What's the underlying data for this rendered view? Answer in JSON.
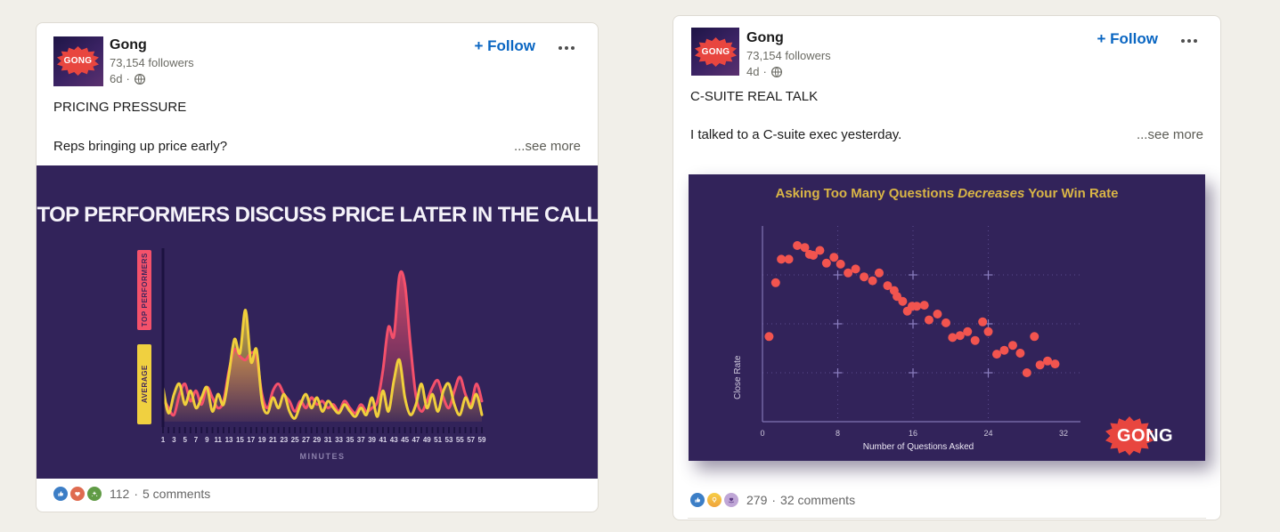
{
  "page": {
    "background": "#f1efe9"
  },
  "posts": [
    {
      "author": "Gong",
      "avatar_text": "GONG",
      "followers": "73,154 followers",
      "time": "6d",
      "separator": "·",
      "visibility_icon": "globe-icon",
      "follow_label": "+ Follow",
      "headline": "PRICING PRESSURE",
      "body": "Reps bringing up price early?",
      "see_more": "...see more",
      "social": {
        "reaction_icons": [
          "like-icon",
          "love-icon",
          "celebrate-icon"
        ],
        "reaction_count": "112",
        "separator": "·",
        "comments": "5 comments"
      }
    },
    {
      "author": "Gong",
      "avatar_text": "GONG",
      "followers": "73,154 followers",
      "time": "4d",
      "separator": "·",
      "visibility_icon": "globe-icon",
      "follow_label": "+ Follow",
      "headline": "C-SUITE REAL TALK",
      "body": "I talked to a C-suite exec yesterday.",
      "see_more": "...see more",
      "social": {
        "reaction_icons": [
          "like-icon",
          "insightful-icon",
          "support-icon"
        ],
        "reaction_count": "279",
        "separator": "·",
        "comments": "32 comments"
      }
    }
  ],
  "chart_data": [
    {
      "type": "area",
      "title": "TOP PERFORMERS DISCUSS PRICE LATER IN THE CALL",
      "xlabel": "MINUTES",
      "x_range": [
        1,
        59
      ],
      "ylim": [
        0,
        100
      ],
      "background": "#32235a",
      "axis_color": "#1c1240",
      "tick_label_color": "#d9d4e8",
      "x_tick_labels": [
        "1",
        "3",
        "5",
        "7",
        "9",
        "11",
        "13",
        "15",
        "17",
        "19",
        "21",
        "23",
        "25",
        "27",
        "29",
        "31",
        "33",
        "35",
        "37",
        "39",
        "41",
        "43",
        "45",
        "47",
        "49",
        "51",
        "53",
        "55",
        "57",
        "59"
      ],
      "series": [
        {
          "name": "TOP PERFORMERS",
          "color": "#f4506b",
          "values": [
            14,
            8,
            4,
            16,
            22,
            12,
            18,
            10,
            20,
            14,
            8,
            12,
            30,
            42,
            38,
            36,
            40,
            38,
            16,
            8,
            18,
            22,
            16,
            12,
            6,
            12,
            8,
            14,
            10,
            12,
            8,
            10,
            6,
            12,
            8,
            5,
            10,
            6,
            8,
            12,
            30,
            55,
            50,
            85,
            80,
            45,
            15,
            6,
            12,
            20,
            24,
            14,
            8,
            18,
            26,
            16,
            10,
            22,
            12
          ]
        },
        {
          "name": "AVERAGE",
          "color": "#f0cf3c",
          "values": [
            20,
            5,
            16,
            22,
            10,
            18,
            8,
            14,
            20,
            6,
            16,
            10,
            28,
            48,
            40,
            65,
            35,
            42,
            12,
            5,
            14,
            8,
            16,
            6,
            2,
            10,
            16,
            8,
            14,
            6,
            12,
            8,
            5,
            10,
            6,
            3,
            8,
            4,
            14,
            3,
            18,
            6,
            24,
            36,
            14,
            4,
            10,
            22,
            8,
            16,
            6,
            18,
            22,
            10,
            4,
            14,
            8,
            16,
            4
          ]
        }
      ]
    },
    {
      "type": "scatter",
      "title_pre": "Asking Too Many Questions ",
      "title_em": "Decreases",
      "title_post": " Your Win Rate",
      "title_color": "#d9b546",
      "xlabel": "Number of Questions Asked",
      "ylabel": "Close Rate",
      "x_ticks": [
        0,
        8,
        16,
        24,
        32
      ],
      "xlim": [
        0,
        33
      ],
      "ylim": [
        0,
        100
      ],
      "grid_y_values": [
        25,
        50,
        75
      ],
      "background": "#32235a",
      "point_color": "#f2544f",
      "grid_color": "#5b4b8e",
      "axis_color": "#8175b5",
      "watermark": "GONG",
      "points": [
        [
          0.7,
          43.5
        ],
        [
          1.4,
          71
        ],
        [
          2.0,
          83
        ],
        [
          2.8,
          83
        ],
        [
          3.7,
          90
        ],
        [
          4.5,
          89
        ],
        [
          5.0,
          85.5
        ],
        [
          5.4,
          85
        ],
        [
          6.1,
          87.5
        ],
        [
          6.8,
          81
        ],
        [
          7.6,
          84
        ],
        [
          8.3,
          80.5
        ],
        [
          9.1,
          76
        ],
        [
          9.9,
          78
        ],
        [
          10.8,
          74
        ],
        [
          11.7,
          72
        ],
        [
          12.4,
          76
        ],
        [
          13.3,
          69.5
        ],
        [
          14.0,
          67
        ],
        [
          14.3,
          64
        ],
        [
          14.9,
          61.5
        ],
        [
          15.4,
          56.5
        ],
        [
          15.9,
          59
        ],
        [
          16.4,
          59
        ],
        [
          17.2,
          59.5
        ],
        [
          17.7,
          52
        ],
        [
          18.6,
          55
        ],
        [
          19.5,
          50.5
        ],
        [
          20.2,
          43
        ],
        [
          21.0,
          44
        ],
        [
          21.8,
          46
        ],
        [
          22.6,
          41.5
        ],
        [
          23.4,
          51
        ],
        [
          24.0,
          46
        ],
        [
          24.9,
          34.5
        ],
        [
          25.7,
          36.5
        ],
        [
          26.6,
          39
        ],
        [
          27.4,
          35
        ],
        [
          28.1,
          25
        ],
        [
          28.9,
          43.5
        ],
        [
          29.5,
          29
        ],
        [
          30.3,
          31
        ],
        [
          31.1,
          29.5
        ]
      ]
    }
  ]
}
